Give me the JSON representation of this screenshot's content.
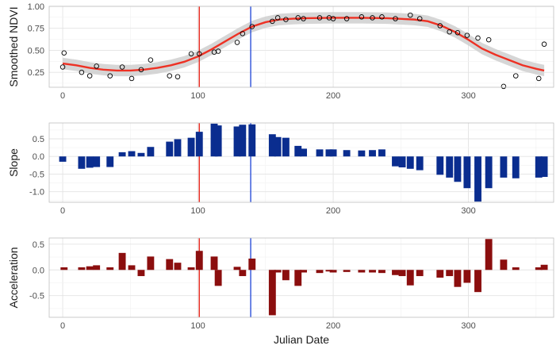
{
  "chart_data": [
    {
      "type": "scatter",
      "ylabel": "Smoothed NDVI",
      "xlim": [
        -10,
        363
      ],
      "ylim": [
        0.08,
        1.0
      ],
      "yticks": [
        0.25,
        0.5,
        0.75,
        1.0
      ],
      "ytick_labels": [
        "0.25",
        "0.50",
        "0.75",
        "1.00"
      ],
      "xticks": [
        0,
        100,
        200,
        300
      ],
      "xtick_labels": [
        "0",
        "100",
        "200",
        "300"
      ],
      "grid": true,
      "points": [
        [
          0,
          0.31
        ],
        [
          1,
          0.47
        ],
        [
          14,
          0.25
        ],
        [
          20,
          0.21
        ],
        [
          25,
          0.32
        ],
        [
          35,
          0.21
        ],
        [
          44,
          0.31
        ],
        [
          51,
          0.18
        ],
        [
          58,
          0.28
        ],
        [
          65,
          0.39
        ],
        [
          79,
          0.21
        ],
        [
          85,
          0.2
        ],
        [
          95,
          0.46
        ],
        [
          101,
          0.46
        ],
        [
          112,
          0.48
        ],
        [
          115,
          0.49
        ],
        [
          129,
          0.59
        ],
        [
          133,
          0.69
        ],
        [
          140,
          0.77
        ],
        [
          155,
          0.83
        ],
        [
          159,
          0.87
        ],
        [
          165,
          0.85
        ],
        [
          174,
          0.87
        ],
        [
          178,
          0.86
        ],
        [
          190,
          0.87
        ],
        [
          197,
          0.87
        ],
        [
          200,
          0.86
        ],
        [
          210,
          0.86
        ],
        [
          221,
          0.88
        ],
        [
          229,
          0.87
        ],
        [
          236,
          0.88
        ],
        [
          246,
          0.86
        ],
        [
          257,
          0.9
        ],
        [
          264,
          0.86
        ],
        [
          279,
          0.78
        ],
        [
          286,
          0.71
        ],
        [
          292,
          0.7
        ],
        [
          299,
          0.67
        ],
        [
          307,
          0.64
        ],
        [
          315,
          0.62
        ],
        [
          326,
          0.09
        ],
        [
          335,
          0.21
        ],
        [
          352,
          0.18
        ],
        [
          356,
          0.57
        ]
      ],
      "smooth": [
        [
          0,
          0.35
        ],
        [
          10,
          0.33
        ],
        [
          20,
          0.3
        ],
        [
          30,
          0.28
        ],
        [
          40,
          0.27
        ],
        [
          50,
          0.27
        ],
        [
          60,
          0.28
        ],
        [
          70,
          0.3
        ],
        [
          80,
          0.33
        ],
        [
          90,
          0.37
        ],
        [
          100,
          0.43
        ],
        [
          110,
          0.51
        ],
        [
          120,
          0.6
        ],
        [
          130,
          0.69
        ],
        [
          140,
          0.77
        ],
        [
          150,
          0.82
        ],
        [
          160,
          0.85
        ],
        [
          170,
          0.86
        ],
        [
          180,
          0.865
        ],
        [
          200,
          0.87
        ],
        [
          220,
          0.87
        ],
        [
          240,
          0.865
        ],
        [
          260,
          0.85
        ],
        [
          270,
          0.83
        ],
        [
          280,
          0.78
        ],
        [
          290,
          0.71
        ],
        [
          300,
          0.62
        ],
        [
          310,
          0.52
        ],
        [
          320,
          0.45
        ],
        [
          330,
          0.39
        ],
        [
          340,
          0.33
        ],
        [
          350,
          0.29
        ],
        [
          356,
          0.27
        ]
      ],
      "smooth_band_halfwidth": 0.065,
      "colors": {
        "points": "#000000",
        "smooth": "#ee3124",
        "band": "#cfcfcf"
      }
    },
    {
      "type": "bar",
      "ylabel": "Slope",
      "xlim": [
        -10,
        363
      ],
      "ylim": [
        -1.3,
        0.95
      ],
      "yticks": [
        0.5,
        0.0,
        -0.5,
        -1.0
      ],
      "ytick_labels": [
        "0.5",
        "0.0",
        "-0.5",
        "-1.0"
      ],
      "xticks": [
        0,
        100,
        200,
        300
      ],
      "xtick_labels": [
        "0",
        "100",
        "200",
        "300"
      ],
      "grid": true,
      "color": "#0a2d8f",
      "bars": [
        [
          0,
          -0.15
        ],
        [
          14,
          -0.35
        ],
        [
          20,
          -0.32
        ],
        [
          25,
          -0.3
        ],
        [
          35,
          -0.3
        ],
        [
          44,
          0.12
        ],
        [
          51,
          0.15
        ],
        [
          58,
          0.1
        ],
        [
          65,
          0.27
        ],
        [
          79,
          0.42
        ],
        [
          85,
          0.49
        ],
        [
          95,
          0.53
        ],
        [
          101,
          0.7
        ],
        [
          112,
          0.93
        ],
        [
          115,
          0.88
        ],
        [
          129,
          0.85
        ],
        [
          133,
          0.9
        ],
        [
          140,
          0.91
        ],
        [
          155,
          0.63
        ],
        [
          159,
          0.55
        ],
        [
          165,
          0.53
        ],
        [
          174,
          0.3
        ],
        [
          178,
          0.22
        ],
        [
          190,
          0.2
        ],
        [
          197,
          0.2
        ],
        [
          200,
          0.2
        ],
        [
          210,
          0.18
        ],
        [
          221,
          0.17
        ],
        [
          229,
          0.18
        ],
        [
          236,
          0.2
        ],
        [
          246,
          -0.28
        ],
        [
          251,
          -0.31
        ],
        [
          257,
          -0.35
        ],
        [
          264,
          -0.39
        ],
        [
          279,
          -0.52
        ],
        [
          286,
          -0.6
        ],
        [
          292,
          -0.72
        ],
        [
          299,
          -0.9
        ],
        [
          307,
          -1.28
        ],
        [
          315,
          -0.9
        ],
        [
          326,
          -0.6
        ],
        [
          335,
          -0.62
        ],
        [
          352,
          -0.6
        ],
        [
          356,
          -0.58
        ]
      ]
    },
    {
      "type": "bar",
      "ylabel": "Acceleration",
      "xlabel": "Julian Date",
      "xlim": [
        -10,
        363
      ],
      "ylim": [
        -0.92,
        0.62
      ],
      "yticks": [
        0.5,
        0.0,
        -0.5
      ],
      "ytick_labels": [
        "0.5",
        "0.0",
        "-0.5"
      ],
      "xticks": [
        0,
        100,
        200,
        300
      ],
      "xtick_labels": [
        "0",
        "100",
        "200",
        "300"
      ],
      "grid": true,
      "color": "#8b0e0e",
      "bars": [
        [
          1,
          0.05
        ],
        [
          14,
          0.05
        ],
        [
          20,
          0.07
        ],
        [
          25,
          0.09
        ],
        [
          35,
          0.05
        ],
        [
          44,
          0.33
        ],
        [
          51,
          0.09
        ],
        [
          58,
          -0.12
        ],
        [
          65,
          0.26
        ],
        [
          79,
          0.21
        ],
        [
          85,
          0.14
        ],
        [
          95,
          0.05
        ],
        [
          101,
          0.37
        ],
        [
          112,
          0.26
        ],
        [
          115,
          -0.31
        ],
        [
          129,
          0.06
        ],
        [
          133,
          -0.12
        ],
        [
          140,
          0.22
        ],
        [
          155,
          -0.88
        ],
        [
          159,
          -0.05
        ],
        [
          165,
          -0.2
        ],
        [
          174,
          -0.31
        ],
        [
          178,
          -0.05
        ],
        [
          190,
          -0.06
        ],
        [
          197,
          -0.03
        ],
        [
          200,
          -0.05
        ],
        [
          210,
          -0.04
        ],
        [
          221,
          -0.05
        ],
        [
          229,
          -0.05
        ],
        [
          236,
          -0.06
        ],
        [
          246,
          -0.1
        ],
        [
          251,
          -0.12
        ],
        [
          257,
          -0.3
        ],
        [
          264,
          -0.12
        ],
        [
          279,
          -0.15
        ],
        [
          286,
          -0.12
        ],
        [
          292,
          -0.33
        ],
        [
          299,
          -0.25
        ],
        [
          307,
          -0.43
        ],
        [
          315,
          0.6
        ],
        [
          326,
          0.2
        ],
        [
          335,
          0.05
        ],
        [
          352,
          0.05
        ],
        [
          356,
          0.1
        ]
      ]
    }
  ],
  "markers": {
    "red_line_x": 101,
    "blue_line_x": 139,
    "red_color": "#e8271c",
    "blue_color": "#2b4fd9"
  }
}
